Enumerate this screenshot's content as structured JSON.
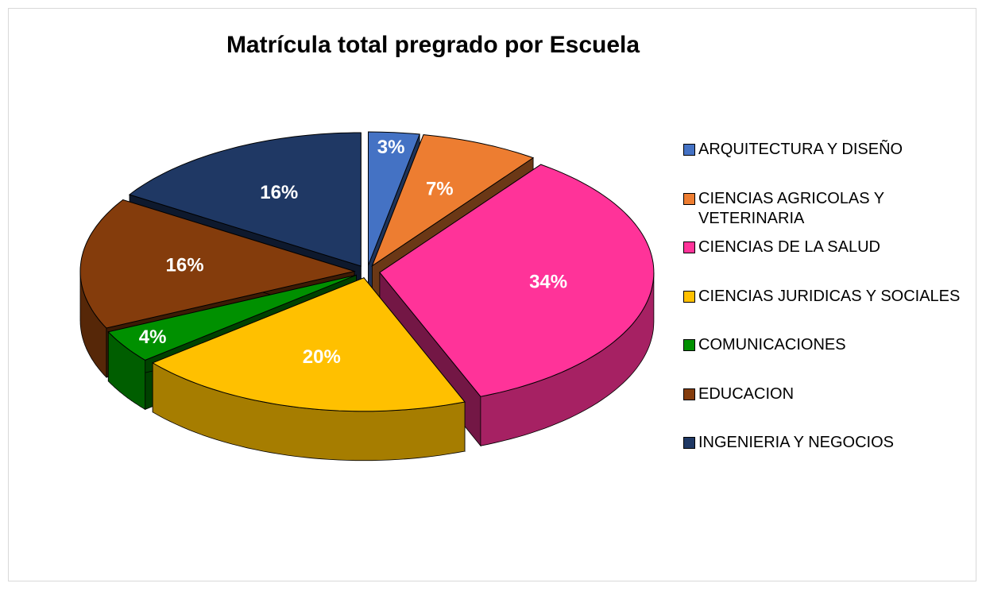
{
  "chart_data": {
    "type": "pie",
    "title": "Matrícula total pregrado por Escuela",
    "categories": [
      "ARQUITECTURA Y DISEÑO",
      "CIENCIAS AGRICOLAS Y VETERINARIA",
      "CIENCIAS DE LA SALUD",
      "CIENCIAS JURIDICAS Y SOCIALES",
      "COMUNICACIONES",
      "EDUCACION",
      "INGENIERIA Y NEGOCIOS"
    ],
    "values": [
      3,
      7,
      34,
      20,
      4,
      16,
      16
    ],
    "value_labels": [
      "3%",
      "7%",
      "34%",
      "20%",
      "4%",
      "16%",
      "16%"
    ],
    "colors": [
      "#4472c4",
      "#ed7d31",
      "#ff3399",
      "#ffc000",
      "#009000",
      "#843c0c",
      "#1f3864"
    ],
    "legend": "right"
  }
}
